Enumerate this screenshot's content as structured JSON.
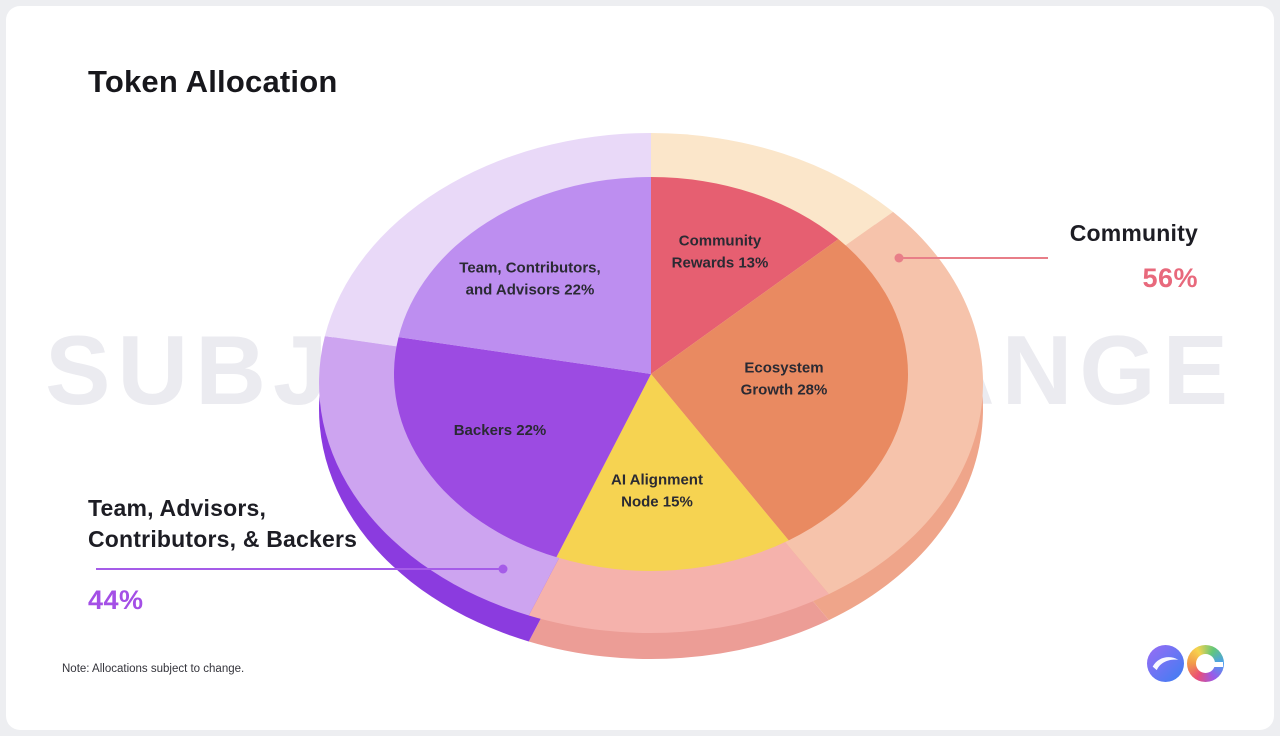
{
  "page": {
    "title": "Token Allocation",
    "watermark": "SUBJECT TO CHANGE",
    "note": "Note: Allocations subject to change."
  },
  "chart_data": {
    "type": "pie",
    "title": "Token Allocation",
    "direction": "clockwise",
    "start_angle": "12 o'clock",
    "unit": "percent",
    "slices": [
      {
        "name": "Community Rewards",
        "value": 13,
        "label": "Community Rewards 13%",
        "lines": [
          "Community",
          "Rewards 13%"
        ],
        "color": "#e65f71",
        "plate_color": "#fbe6ca",
        "side_color": "#f2cfa7"
      },
      {
        "name": "Ecosystem Growth",
        "value": 28,
        "label": "Ecosystem Growth 28%",
        "lines": [
          "Ecosystem",
          "Growth 28%"
        ],
        "color": "#e98a61",
        "plate_color": "#f6c3ab",
        "side_color": "#efa58a"
      },
      {
        "name": "AI Alignment Node",
        "value": 15,
        "label": "AI Alignment Node 15%",
        "lines": [
          "AI Alignment",
          "Node 15%"
        ],
        "color": "#f6d351",
        "plate_color": "#f5b2ac",
        "side_color": "#ec9d96"
      },
      {
        "name": "Backers",
        "value": 22,
        "label": "Backers 22%",
        "lines": [
          "Backers 22%"
        ],
        "color": "#9c4be2",
        "plate_color": "#cda4f0",
        "side_color": "#8b3bdf"
      },
      {
        "name": "Team, Contributors, and Advisors",
        "value": 22,
        "label": "Team, Contributors, and Advisors 22%",
        "lines": [
          "Team, Contributors,",
          "and Advisors 22%"
        ],
        "color": "#bd8ef0",
        "plate_color": "#e9d9f8",
        "side_color": "#b37ae9"
      }
    ],
    "callouts": [
      {
        "name": "Community group",
        "label": "Community",
        "value": "56%",
        "color": "#e8697c",
        "line_color": "#e87e88"
      },
      {
        "name": "Team group",
        "label": "Team, Advisors, Contributors, & Backers",
        "lines": [
          "Team, Advisors,",
          "Contributors, & Backers"
        ],
        "value": "44%",
        "color": "#a44fe6",
        "line_color": "#a55ce8"
      }
    ]
  }
}
